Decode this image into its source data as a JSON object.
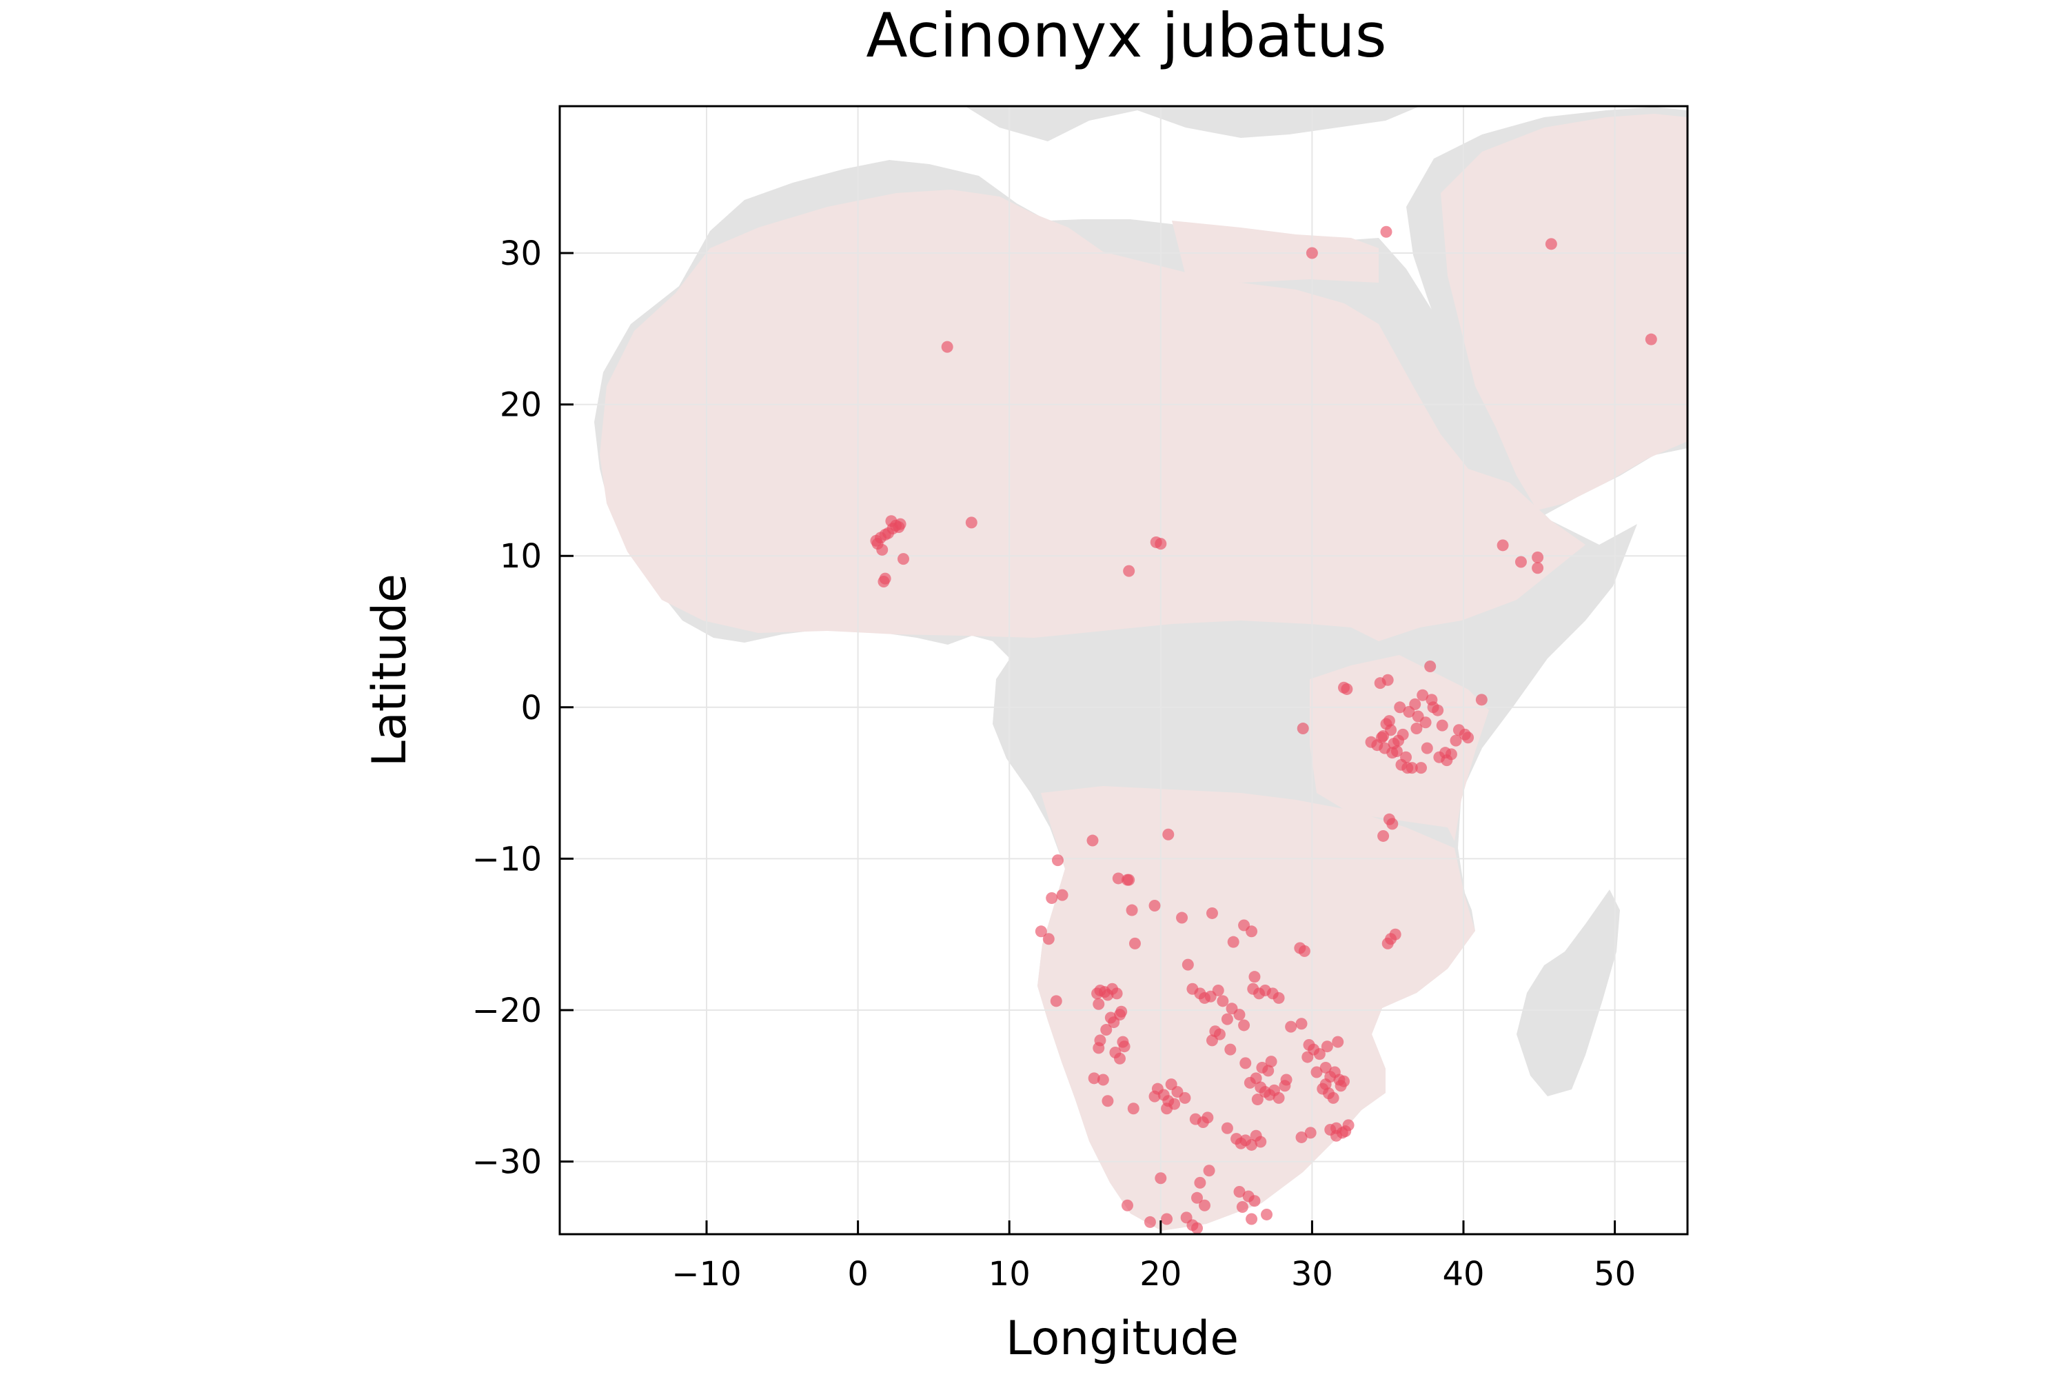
{
  "chart_data": {
    "type": "scatter",
    "title": "Acinonyx jubatus",
    "xlabel": "Longitude",
    "ylabel": "Latitude",
    "xlim": [
      -19.7,
      54.8
    ],
    "ylim": [
      -34.8,
      39.7
    ],
    "xticks": [
      -10,
      0,
      10,
      20,
      30,
      40,
      50
    ],
    "yticks": [
      -30,
      -20,
      -10,
      0,
      10,
      20,
      30
    ],
    "xtick_labels": [
      "−10",
      "0",
      "10",
      "20",
      "30",
      "40",
      "50"
    ],
    "ytick_labels": [
      "−30",
      "−20",
      "−10",
      "0",
      "10",
      "20",
      "30"
    ],
    "grid": true,
    "legend": "none",
    "basemap": "land masses of Africa, southern Europe and the Arabian Peninsula",
    "colors": {
      "background_land": "#e3e3e3",
      "range_layer": "#f2e3e2",
      "points": "#e8485f"
    },
    "series": [
      {
        "x": [
          5.9,
          7.5,
          1.2,
          1.5,
          1.8,
          2.0,
          2.3,
          2.5,
          2.8,
          1.3,
          1.7,
          1.8,
          3.0,
          2.2,
          2.7,
          1.6,
          19.7,
          20.0,
          17.9,
          30.0,
          34.9,
          45.8,
          52.4,
          42.6,
          43.8,
          44.9,
          44.9
        ],
        "y": [
          23.8,
          12.2,
          11.0,
          11.2,
          11.4,
          11.5,
          11.8,
          12.0,
          12.1,
          10.8,
          8.3,
          8.5,
          9.8,
          12.3,
          11.9,
          10.4,
          10.9,
          10.8,
          9.0,
          30.0,
          31.4,
          30.6,
          24.3,
          10.7,
          9.6,
          9.2,
          9.9
        ]
      },
      {
        "x": [
          37.3,
          36.8,
          37.9,
          38.3,
          37.0,
          35.2,
          36.0,
          34.6,
          35.4,
          34.8,
          35.6,
          36.2,
          35.9,
          34.9,
          35.1,
          35.7,
          34.3,
          33.9,
          36.9,
          37.6,
          38.8,
          38.4,
          39.2,
          37.5,
          36.4,
          35.8,
          34.7,
          35.3,
          38.0,
          39.7,
          40.1,
          39.5,
          40.3,
          38.6,
          37.8,
          36.6,
          36.3,
          37.2,
          38.9,
          41.2,
          34.5,
          35.0,
          32.1,
          32.3,
          29.4,
          35.1,
          35.3,
          34.7,
          35.5,
          35.2,
          35.0
        ],
        "y": [
          0.8,
          0.2,
          0.5,
          -0.2,
          -0.6,
          -1.5,
          -1.8,
          -2.0,
          -2.4,
          -2.7,
          -2.9,
          -3.3,
          -3.8,
          -1.1,
          -0.9,
          -2.2,
          -2.5,
          -2.3,
          -1.4,
          -2.7,
          -3.0,
          -3.3,
          -3.1,
          -1.0,
          -0.3,
          0.0,
          -1.9,
          -3.0,
          0.0,
          -1.5,
          -1.8,
          -2.2,
          -2.0,
          -1.2,
          2.7,
          -4.0,
          -4.0,
          -4.0,
          -3.5,
          0.5,
          1.6,
          1.8,
          1.3,
          1.2,
          -1.4,
          -7.4,
          -7.7,
          -8.5,
          -15.0,
          -15.3,
          -15.6
        ]
      },
      {
        "x": [
          13.2,
          15.5,
          17.2,
          17.8,
          18.3,
          20.5,
          21.4,
          21.8,
          23.4,
          24.8,
          25.5,
          26.0,
          26.2,
          29.2,
          29.5,
          12.8,
          13.5,
          12.1,
          12.6,
          15.8,
          16.0,
          16.3,
          16.5,
          16.8,
          17.1,
          17.4,
          16.7,
          16.9,
          17.3,
          16.4,
          16.0,
          15.9,
          17.5,
          17.0,
          17.6,
          17.3,
          16.2,
          15.6,
          13.1,
          15.9,
          16.5,
          18.2,
          19.6,
          18.1,
          17.9
        ],
        "y": [
          -10.1,
          -8.8,
          -11.3,
          -11.4,
          -15.6,
          -8.4,
          -13.9,
          -17.0,
          -13.6,
          -15.5,
          -14.4,
          -14.8,
          -17.8,
          -15.9,
          -16.1,
          -12.6,
          -12.4,
          -14.8,
          -15.3,
          -18.9,
          -18.7,
          -18.8,
          -19.0,
          -18.6,
          -18.9,
          -20.1,
          -20.5,
          -20.8,
          -20.3,
          -21.3,
          -22.0,
          -22.5,
          -22.1,
          -22.8,
          -22.4,
          -23.2,
          -24.6,
          -24.5,
          -19.4,
          -19.6,
          -26.0,
          -26.5,
          -13.1,
          -13.4,
          -11.4
        ]
      },
      {
        "x": [
          22.1,
          22.6,
          22.9,
          23.3,
          23.8,
          24.1,
          24.4,
          24.7,
          25.2,
          25.5,
          23.6,
          23.9,
          23.4,
          24.6,
          26.1,
          26.5,
          26.9,
          27.4,
          27.8,
          26.7,
          27.1,
          26.3,
          25.9,
          25.6,
          26.6,
          26.9,
          27.2,
          27.5,
          27.8,
          28.2,
          26.4,
          27.3,
          28.3,
          29.7,
          30.1,
          30.5,
          30.9,
          31.2,
          31.5,
          31.8,
          30.7,
          31.1,
          31.4,
          31.9,
          32.1,
          31.7,
          31.0,
          30.3,
          30.9,
          31.6,
          32.0,
          31.2,
          31.6,
          32.2,
          32.4,
          28.6,
          29.3,
          29.8
        ],
        "y": [
          -18.6,
          -18.9,
          -19.2,
          -19.1,
          -18.7,
          -19.4,
          -20.6,
          -19.9,
          -20.3,
          -21.0,
          -21.4,
          -21.6,
          -22.0,
          -22.6,
          -18.6,
          -18.9,
          -18.7,
          -18.9,
          -19.2,
          -23.8,
          -24.0,
          -24.5,
          -24.8,
          -23.5,
          -25.1,
          -25.4,
          -25.6,
          -25.3,
          -25.8,
          -25.0,
          -25.9,
          -23.4,
          -24.6,
          -23.1,
          -22.6,
          -22.9,
          -23.8,
          -24.4,
          -24.1,
          -24.6,
          -25.2,
          -25.5,
          -25.8,
          -25.0,
          -24.7,
          -22.1,
          -22.4,
          -24.1,
          -24.9,
          -27.8,
          -28.1,
          -27.9,
          -28.3,
          -28.0,
          -27.6,
          -21.1,
          -20.9,
          -22.3
        ]
      },
      {
        "x": [
          19.8,
          20.2,
          20.5,
          20.9,
          21.1,
          20.4,
          20.7,
          19.6,
          21.6,
          22.3,
          22.8,
          23.1,
          24.4,
          25.0,
          25.3,
          25.6,
          26.0,
          26.3,
          26.6,
          25.2,
          25.8,
          26.2,
          25.4,
          22.4,
          22.9,
          21.7,
          20.4,
          19.3,
          17.8,
          22.1,
          22.4,
          23.2,
          27.0,
          26.0,
          29.3,
          29.9,
          20.0,
          22.6
        ],
        "y": [
          -25.2,
          -25.6,
          -26.0,
          -26.2,
          -25.4,
          -26.5,
          -24.9,
          -25.7,
          -25.8,
          -27.2,
          -27.4,
          -27.1,
          -27.8,
          -28.5,
          -28.8,
          -28.6,
          -28.9,
          -28.3,
          -28.7,
          -32.0,
          -32.3,
          -32.6,
          -33.0,
          -32.4,
          -32.9,
          -33.7,
          -33.8,
          -34.0,
          -32.9,
          -34.2,
          -34.4,
          -30.6,
          -33.5,
          -33.8,
          -28.4,
          -28.1,
          -31.1,
          -31.4
        ]
      }
    ]
  }
}
